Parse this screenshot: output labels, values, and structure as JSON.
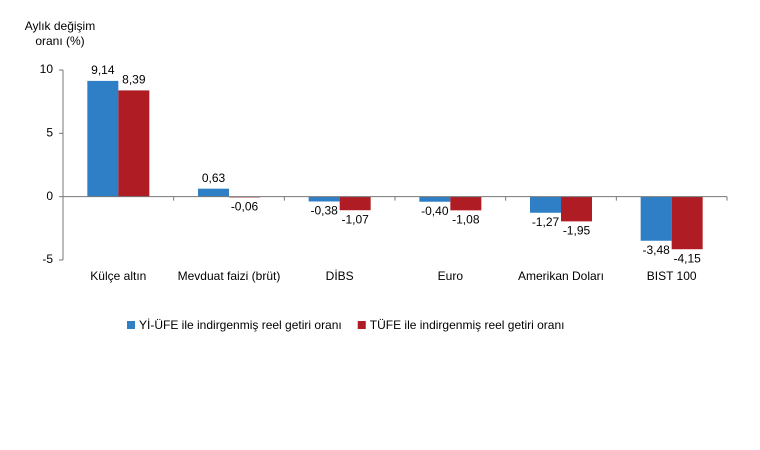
{
  "chart_data": {
    "type": "bar",
    "y_label": [
      "Aylık değişim",
      "oranı (%)"
    ],
    "categories": [
      "Külçe altın",
      "Mevduat faizi (brüt)",
      "DİBS",
      "Euro",
      "Amerikan Doları",
      "BIST 100"
    ],
    "series": [
      {
        "name": "Yİ-ÜFE ile indirgenmiş reel getiri oranı",
        "color": "#2e7fc5",
        "values": [
          9.14,
          0.63,
          -0.38,
          -0.4,
          -1.27,
          -3.48
        ],
        "value_labels": [
          "9,14",
          "0,63",
          "-0,38",
          "-0,40",
          "-1,27",
          "-3,48"
        ]
      },
      {
        "name": "TÜFE ile indirgenmiş reel getiri oranı",
        "color": "#b01c24",
        "values": [
          8.39,
          -0.06,
          -1.07,
          -1.08,
          -1.95,
          -4.15
        ],
        "value_labels": [
          "8,39",
          "-0,06",
          "-1,07",
          "-1,08",
          "-1,95",
          "-4,15"
        ]
      }
    ],
    "ylim": [
      -5,
      10
    ],
    "yticks": [
      -5,
      0,
      5,
      10
    ],
    "legend": "bottom"
  }
}
